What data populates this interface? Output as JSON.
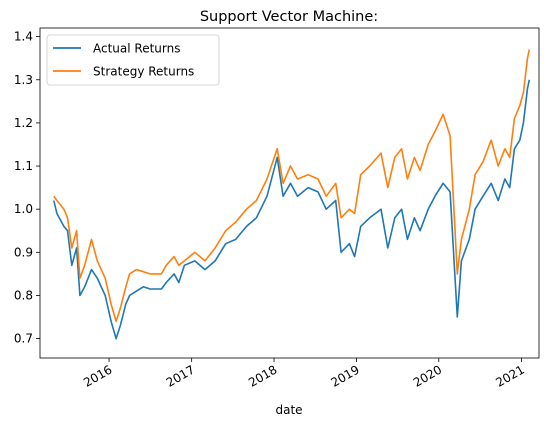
{
  "chart_data": {
    "type": "line",
    "title": "Support Vector Machine:",
    "xlabel": "date",
    "ylabel": "",
    "ylim": [
      0.655,
      1.42
    ],
    "xlim": [
      "2015-03-01",
      "2021-03-20"
    ],
    "y_ticks": [
      0.7,
      0.8,
      0.9,
      1.0,
      1.1,
      1.2,
      1.3,
      1.4
    ],
    "y_tick_labels": [
      "0.7",
      "0.8",
      "0.9",
      "1.0",
      "1.1",
      "1.2",
      "1.3",
      "1.4"
    ],
    "x_ticks": [
      "2016-01-01",
      "2017-01-01",
      "2018-01-01",
      "2019-01-01",
      "2020-01-01",
      "2021-01-01"
    ],
    "x_tick_labels": [
      "2016",
      "2017",
      "2018",
      "2019",
      "2020",
      "2021"
    ],
    "legend": "top-left",
    "grid": false,
    "series": [
      {
        "name": "Actual Returns",
        "color": "#1f77b4",
        "points": [
          [
            "2015-05-01",
            1.02
          ],
          [
            "2015-05-15",
            0.99
          ],
          [
            "2015-06-15",
            0.96
          ],
          [
            "2015-07-01",
            0.95
          ],
          [
            "2015-07-20",
            0.87
          ],
          [
            "2015-08-10",
            0.91
          ],
          [
            "2015-08-25",
            0.8
          ],
          [
            "2015-09-15",
            0.82
          ],
          [
            "2015-10-15",
            0.86
          ],
          [
            "2015-11-10",
            0.84
          ],
          [
            "2015-12-15",
            0.8
          ],
          [
            "2016-01-10",
            0.74
          ],
          [
            "2016-02-01",
            0.7
          ],
          [
            "2016-02-20",
            0.73
          ],
          [
            "2016-03-15",
            0.78
          ],
          [
            "2016-04-01",
            0.8
          ],
          [
            "2016-05-01",
            0.81
          ],
          [
            "2016-06-01",
            0.82
          ],
          [
            "2016-07-01",
            0.815
          ],
          [
            "2016-08-20",
            0.815
          ],
          [
            "2016-09-10",
            0.83
          ],
          [
            "2016-10-15",
            0.85
          ],
          [
            "2016-11-05",
            0.83
          ],
          [
            "2016-11-30",
            0.87
          ],
          [
            "2017-01-15",
            0.88
          ],
          [
            "2017-03-01",
            0.86
          ],
          [
            "2017-04-15",
            0.88
          ],
          [
            "2017-06-01",
            0.92
          ],
          [
            "2017-07-15",
            0.93
          ],
          [
            "2017-09-01",
            0.96
          ],
          [
            "2017-10-15",
            0.98
          ],
          [
            "2017-12-01",
            1.03
          ],
          [
            "2018-01-15",
            1.12
          ],
          [
            "2018-02-10",
            1.03
          ],
          [
            "2018-03-15",
            1.06
          ],
          [
            "2018-04-15",
            1.03
          ],
          [
            "2018-06-01",
            1.05
          ],
          [
            "2018-07-15",
            1.04
          ],
          [
            "2018-08-20",
            1.0
          ],
          [
            "2018-10-01",
            1.02
          ],
          [
            "2018-10-25",
            0.9
          ],
          [
            "2018-12-01",
            0.92
          ],
          [
            "2018-12-24",
            0.89
          ],
          [
            "2019-01-20",
            0.96
          ],
          [
            "2019-03-01",
            0.98
          ],
          [
            "2019-04-20",
            1.0
          ],
          [
            "2019-05-20",
            0.91
          ],
          [
            "2019-06-20",
            0.98
          ],
          [
            "2019-07-20",
            1.0
          ],
          [
            "2019-08-15",
            0.93
          ],
          [
            "2019-09-15",
            0.98
          ],
          [
            "2019-10-10",
            0.95
          ],
          [
            "2019-11-15",
            1.0
          ],
          [
            "2019-12-15",
            1.03
          ],
          [
            "2020-01-20",
            1.06
          ],
          [
            "2020-02-20",
            1.04
          ],
          [
            "2020-03-12",
            0.85
          ],
          [
            "2020-03-23",
            0.75
          ],
          [
            "2020-04-10",
            0.88
          ],
          [
            "2020-05-15",
            0.93
          ],
          [
            "2020-06-10",
            1.0
          ],
          [
            "2020-07-15",
            1.03
          ],
          [
            "2020-08-20",
            1.06
          ],
          [
            "2020-09-20",
            1.02
          ],
          [
            "2020-10-20",
            1.07
          ],
          [
            "2020-11-10",
            1.05
          ],
          [
            "2020-12-01",
            1.14
          ],
          [
            "2020-12-25",
            1.16
          ],
          [
            "2021-01-10",
            1.2
          ],
          [
            "2021-01-28",
            1.28
          ],
          [
            "2021-02-05",
            1.3
          ]
        ]
      },
      {
        "name": "Strategy Returns",
        "color": "#ff7f0e",
        "points": [
          [
            "2015-05-01",
            1.03
          ],
          [
            "2015-05-15",
            1.02
          ],
          [
            "2015-06-15",
            1.0
          ],
          [
            "2015-07-01",
            0.98
          ],
          [
            "2015-07-20",
            0.91
          ],
          [
            "2015-08-10",
            0.95
          ],
          [
            "2015-08-25",
            0.84
          ],
          [
            "2015-09-15",
            0.87
          ],
          [
            "2015-10-15",
            0.93
          ],
          [
            "2015-11-10",
            0.88
          ],
          [
            "2015-12-15",
            0.84
          ],
          [
            "2016-01-10",
            0.78
          ],
          [
            "2016-02-01",
            0.74
          ],
          [
            "2016-02-20",
            0.77
          ],
          [
            "2016-03-15",
            0.82
          ],
          [
            "2016-04-01",
            0.85
          ],
          [
            "2016-05-01",
            0.86
          ],
          [
            "2016-06-01",
            0.855
          ],
          [
            "2016-07-01",
            0.85
          ],
          [
            "2016-08-20",
            0.85
          ],
          [
            "2016-09-10",
            0.87
          ],
          [
            "2016-10-15",
            0.89
          ],
          [
            "2016-11-05",
            0.87
          ],
          [
            "2016-11-30",
            0.88
          ],
          [
            "2017-01-15",
            0.9
          ],
          [
            "2017-03-01",
            0.88
          ],
          [
            "2017-04-15",
            0.91
          ],
          [
            "2017-06-01",
            0.95
          ],
          [
            "2017-07-15",
            0.97
          ],
          [
            "2017-09-01",
            1.0
          ],
          [
            "2017-10-15",
            1.02
          ],
          [
            "2017-12-01",
            1.07
          ],
          [
            "2018-01-15",
            1.14
          ],
          [
            "2018-02-10",
            1.06
          ],
          [
            "2018-03-15",
            1.1
          ],
          [
            "2018-04-15",
            1.07
          ],
          [
            "2018-06-01",
            1.08
          ],
          [
            "2018-07-15",
            1.07
          ],
          [
            "2018-08-20",
            1.03
          ],
          [
            "2018-10-01",
            1.06
          ],
          [
            "2018-10-25",
            0.98
          ],
          [
            "2018-12-01",
            1.0
          ],
          [
            "2018-12-24",
            0.99
          ],
          [
            "2019-01-20",
            1.08
          ],
          [
            "2019-03-01",
            1.1
          ],
          [
            "2019-04-20",
            1.13
          ],
          [
            "2019-05-20",
            1.05
          ],
          [
            "2019-06-20",
            1.12
          ],
          [
            "2019-07-20",
            1.14
          ],
          [
            "2019-08-15",
            1.07
          ],
          [
            "2019-09-15",
            1.12
          ],
          [
            "2019-10-10",
            1.09
          ],
          [
            "2019-11-15",
            1.15
          ],
          [
            "2019-12-15",
            1.18
          ],
          [
            "2020-01-20",
            1.22
          ],
          [
            "2020-02-20",
            1.17
          ],
          [
            "2020-03-12",
            0.96
          ],
          [
            "2020-03-23",
            0.85
          ],
          [
            "2020-04-10",
            0.93
          ],
          [
            "2020-05-15",
            1.0
          ],
          [
            "2020-06-10",
            1.08
          ],
          [
            "2020-07-15",
            1.11
          ],
          [
            "2020-08-20",
            1.16
          ],
          [
            "2020-09-20",
            1.1
          ],
          [
            "2020-10-20",
            1.14
          ],
          [
            "2020-11-10",
            1.12
          ],
          [
            "2020-12-01",
            1.21
          ],
          [
            "2020-12-25",
            1.24
          ],
          [
            "2021-01-10",
            1.27
          ],
          [
            "2021-01-28",
            1.35
          ],
          [
            "2021-02-05",
            1.37
          ]
        ]
      }
    ]
  }
}
